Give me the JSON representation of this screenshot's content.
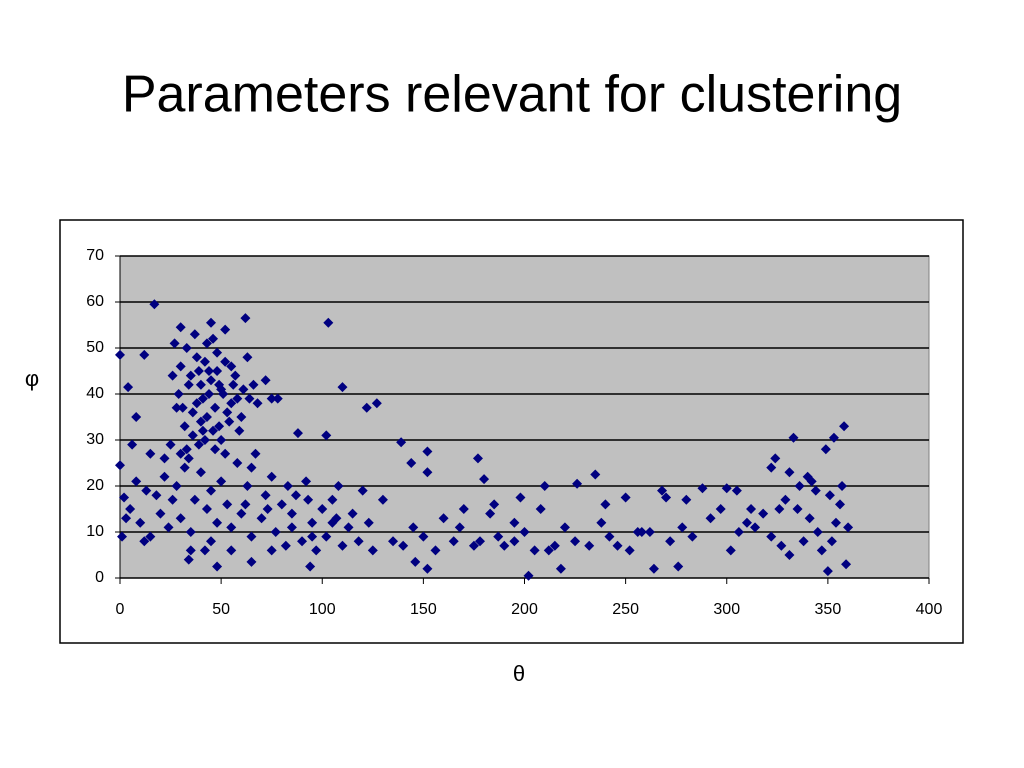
{
  "chart_data": {
    "type": "scatter",
    "title": "Parameters relevant for clustering",
    "x_label": "θ",
    "y_label": "φ",
    "color": "#000080",
    "background": "#c0c0c0",
    "grid": true,
    "xlim": [
      0,
      400
    ],
    "xticks": [
      0,
      50,
      100,
      150,
      200,
      250,
      300,
      350,
      400
    ],
    "ylim": [
      0,
      70
    ],
    "yticks": [
      0,
      10,
      20,
      30,
      40,
      50,
      60,
      70
    ],
    "x": [
      17,
      62,
      103,
      0,
      4,
      12,
      110,
      127,
      122,
      139,
      102,
      88,
      177,
      235,
      226,
      210,
      152,
      144,
      152,
      180,
      198,
      250,
      270,
      288,
      300,
      324,
      333,
      353,
      358,
      349,
      202,
      218,
      264,
      350,
      359,
      276,
      152,
      146,
      48,
      65,
      34,
      94,
      0,
      6,
      8,
      2,
      3,
      1,
      30,
      45,
      27,
      30,
      33,
      35,
      38,
      40,
      42,
      44,
      46,
      48,
      50,
      52,
      55,
      57,
      29,
      31,
      34,
      36,
      39,
      41,
      43,
      45,
      47,
      49,
      51,
      53,
      56,
      58,
      60,
      32,
      36,
      38,
      40,
      42,
      44,
      46,
      48,
      50,
      54,
      26,
      28,
      37,
      39,
      43,
      47,
      59,
      61,
      63,
      64,
      66,
      68,
      72,
      75,
      78,
      55,
      52,
      30,
      34,
      41,
      49,
      5,
      8,
      10,
      13,
      15,
      18,
      20,
      22,
      24,
      26,
      28,
      30,
      32,
      35,
      37,
      40,
      43,
      45,
      48,
      50,
      53,
      55,
      58,
      60,
      63,
      65,
      67,
      70,
      72,
      75,
      77,
      80,
      82,
      85,
      87,
      90,
      92,
      95,
      97,
      100,
      102,
      105,
      107,
      110,
      113,
      115,
      118,
      120,
      123,
      125,
      15,
      25,
      35,
      45,
      55,
      65,
      75,
      85,
      95,
      105,
      12,
      22,
      33,
      42,
      52,
      62,
      73,
      83,
      93,
      108,
      130,
      135,
      140,
      145,
      150,
      156,
      160,
      165,
      170,
      175,
      178,
      183,
      187,
      190,
      195,
      200,
      205,
      208,
      215,
      220,
      225,
      232,
      238,
      242,
      246,
      252,
      258,
      262,
      268,
      272,
      278,
      283,
      292,
      297,
      302,
      306,
      310,
      314,
      318,
      322,
      326,
      329,
      331,
      336,
      338,
      341,
      344,
      347,
      351,
      354,
      356,
      360,
      327,
      331,
      340,
      345,
      352,
      357,
      322,
      335,
      168,
      185,
      195,
      212,
      240,
      256,
      280,
      305,
      312,
      342
    ],
    "y": [
      59.5,
      56.5,
      55.5,
      48.5,
      41.5,
      48.5,
      41.5,
      38,
      37,
      29.5,
      31,
      31.5,
      26,
      22.5,
      20.5,
      20,
      27.5,
      25,
      23,
      21.5,
      17.5,
      17.5,
      17.5,
      19.5,
      19.5,
      26,
      30.5,
      30.5,
      33,
      28,
      0.5,
      2,
      2,
      1.5,
      3,
      2.5,
      2,
      3.5,
      2.5,
      3.5,
      4,
      2.5,
      24.5,
      29,
      35,
      17.5,
      13,
      9,
      54.5,
      55.5,
      51,
      46,
      50,
      44,
      48,
      42,
      47,
      40,
      52,
      45,
      41,
      47,
      38,
      44,
      40,
      37,
      42,
      36,
      45,
      39,
      35,
      43,
      37,
      33,
      40,
      36,
      42,
      39,
      35,
      33,
      31,
      38,
      34,
      30,
      45,
      32,
      49,
      30,
      34,
      44,
      37,
      53,
      29,
      51,
      28,
      32,
      41,
      48,
      39,
      42,
      38,
      43,
      39,
      39,
      46,
      54,
      27,
      26,
      32,
      42,
      15,
      21,
      12,
      19,
      9,
      18,
      14,
      22,
      11,
      17,
      20,
      13,
      24,
      10,
      17,
      23,
      15,
      19,
      12,
      21,
      16,
      11,
      25,
      14,
      20,
      9,
      27,
      13,
      18,
      22,
      10,
      16,
      7,
      14,
      18,
      8,
      21,
      12,
      6,
      15,
      9,
      17,
      13,
      7,
      11,
      14,
      8,
      19,
      12,
      6,
      27,
      29,
      6,
      8,
      6,
      24,
      6,
      11,
      9,
      12,
      8,
      26,
      28,
      6,
      27,
      16,
      15,
      20,
      17,
      20,
      17,
      8,
      7,
      11,
      9,
      6,
      13,
      8,
      15,
      7,
      8,
      14,
      9,
      7,
      12,
      10,
      6,
      15,
      7,
      11,
      8,
      7,
      12,
      9,
      7,
      6,
      10,
      10,
      19,
      8,
      11,
      9,
      13,
      15,
      6,
      10,
      12,
      11,
      14,
      9,
      15,
      17,
      23,
      20,
      8,
      13,
      19,
      6,
      18,
      12,
      16,
      11,
      7,
      5,
      22,
      10,
      8,
      20,
      24,
      15,
      11,
      16,
      8,
      6,
      16,
      10,
      17,
      19,
      15,
      21
    ]
  }
}
